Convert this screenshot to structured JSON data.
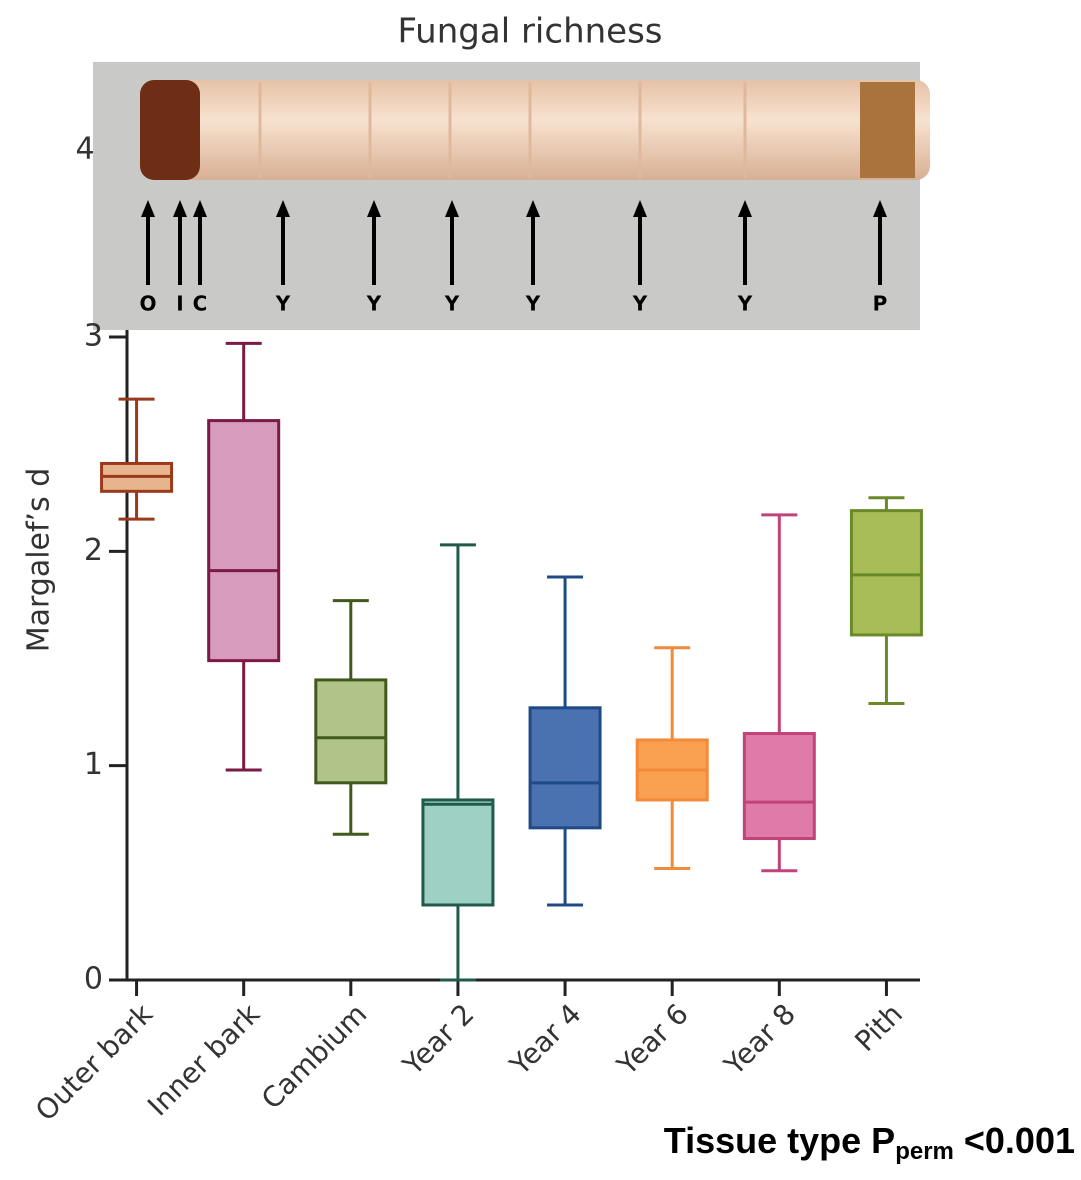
{
  "chart_data": {
    "type": "box",
    "title": "Fungal richness",
    "ylabel": "Margalef’s d",
    "categories": [
      "Outer bark",
      "Inner bark",
      "Cambium",
      "Year 2",
      "Year 4",
      "Year 6",
      "Year 8",
      "Pith"
    ],
    "stats": [
      {
        "min": 2.15,
        "q1": 2.28,
        "median": 2.35,
        "q3": 2.41,
        "max": 2.71
      },
      {
        "min": 0.98,
        "q1": 1.49,
        "median": 1.91,
        "q3": 2.61,
        "max": 2.97
      },
      {
        "min": 0.68,
        "q1": 0.92,
        "median": 1.13,
        "q3": 1.4,
        "max": 1.77
      },
      {
        "min": 0,
        "q1": 0.35,
        "median": 0.82,
        "q3": 0.84,
        "max": 2.03
      },
      {
        "min": 0.35,
        "q1": 0.71,
        "median": 0.92,
        "q3": 1.27,
        "max": 1.88
      },
      {
        "min": 0.52,
        "q1": 0.84,
        "median": 0.98,
        "q3": 1.12,
        "max": 1.55
      },
      {
        "min": 0.51,
        "q1": 0.66,
        "median": 0.83,
        "q3": 1.15,
        "max": 2.17
      },
      {
        "min": 1.29,
        "q1": 1.61,
        "median": 1.89,
        "q3": 2.19,
        "max": 2.25
      }
    ],
    "colors": [
      "#9b3a1a",
      "#7a1a45",
      "#3f5a1a",
      "#1f5a4a",
      "#1e4a86",
      "#f28a3a",
      "#c0437a",
      "#6a8a2a"
    ],
    "fills": [
      "#e8b48e",
      "#d79bbd",
      "#b0c48a",
      "#9fd0c4",
      "#4a72b0",
      "#f9a050",
      "#e07aa8",
      "#a8bc58"
    ],
    "ylim": [
      0,
      3
    ],
    "yticks": [
      0,
      1,
      2,
      3
    ],
    "annotation": [
      "Tissue type P",
      "perm",
      " <0.001"
    ],
    "photo_labels": [
      "O",
      "I",
      "C",
      "Y",
      "Y",
      "Y",
      "Y",
      "Y",
      "Y",
      "P"
    ],
    "photo_fragment": "4"
  }
}
